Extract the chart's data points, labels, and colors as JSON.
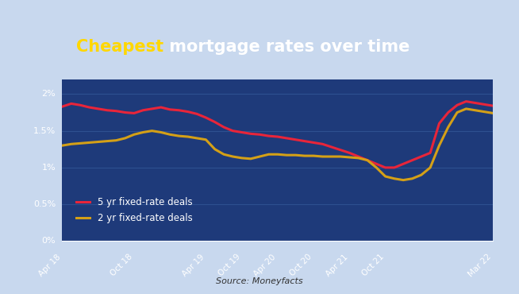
{
  "title_part1": "Cheapest",
  "title_part2": " mortgage rates over time",
  "title_color1": "#FFD700",
  "title_color2": "#FFFFFF",
  "title_bg": "#1a2a5e",
  "plot_bg": "#1e3a7a",
  "grid_color": "#2e5090",
  "source_text": "Source: Moneyfacts",
  "ylim": [
    0,
    0.022
  ],
  "yticks": [
    0,
    0.005,
    0.01,
    0.015,
    0.02
  ],
  "ytick_labels": [
    "0%",
    "0.5%",
    "1%",
    "1.5%",
    "2%"
  ],
  "x_labels": [
    "Apr 18",
    "Oct 18",
    "Apr 19",
    "Oct 19",
    "Apr 20",
    "Oct 20",
    "Apr 21",
    "Oct 21",
    "Mar 22"
  ],
  "line5yr_color": "#e8253a",
  "line2yr_color": "#d4a017",
  "line_width": 2.2,
  "legend_5yr": "5 yr fixed-rate deals",
  "legend_2yr": "2 yr fixed-rate deals",
  "x_5yr": [
    0,
    1,
    2,
    3,
    4,
    5,
    6,
    7,
    8,
    9,
    10,
    11,
    12,
    13,
    14,
    15,
    16,
    17,
    18,
    19,
    20,
    21,
    22,
    23,
    24,
    25,
    26,
    27,
    28,
    29,
    30,
    31,
    32,
    33,
    34,
    35,
    36,
    37,
    38,
    39,
    40,
    41,
    42,
    43,
    44,
    45,
    46,
    47,
    48
  ],
  "y_5yr": [
    0.0183,
    0.0187,
    0.0185,
    0.0182,
    0.018,
    0.0178,
    0.0177,
    0.0175,
    0.0174,
    0.0178,
    0.018,
    0.0182,
    0.0179,
    0.0178,
    0.0176,
    0.0173,
    0.0168,
    0.0162,
    0.0155,
    0.015,
    0.0148,
    0.0146,
    0.0145,
    0.0143,
    0.0142,
    0.014,
    0.0138,
    0.0136,
    0.0134,
    0.0132,
    0.0128,
    0.0124,
    0.012,
    0.0115,
    0.011,
    0.0105,
    0.01,
    0.01,
    0.0105,
    0.011,
    0.0115,
    0.012,
    0.016,
    0.0175,
    0.0185,
    0.019,
    0.0188,
    0.0186,
    0.0184
  ],
  "x_2yr": [
    0,
    1,
    2,
    3,
    4,
    5,
    6,
    7,
    8,
    9,
    10,
    11,
    12,
    13,
    14,
    15,
    16,
    17,
    18,
    19,
    20,
    21,
    22,
    23,
    24,
    25,
    26,
    27,
    28,
    29,
    30,
    31,
    32,
    33,
    34,
    35,
    36,
    37,
    38,
    39,
    40,
    41,
    42,
    43,
    44,
    45,
    46,
    47,
    48
  ],
  "y_2yr": [
    0.013,
    0.0132,
    0.0133,
    0.0134,
    0.0135,
    0.0136,
    0.0137,
    0.014,
    0.0145,
    0.0148,
    0.015,
    0.0148,
    0.0145,
    0.0143,
    0.0142,
    0.014,
    0.0138,
    0.0125,
    0.0118,
    0.0115,
    0.0113,
    0.0112,
    0.0115,
    0.0118,
    0.0118,
    0.0117,
    0.0117,
    0.0116,
    0.0116,
    0.0115,
    0.0115,
    0.0115,
    0.0114,
    0.0113,
    0.011,
    0.01,
    0.0088,
    0.0085,
    0.0083,
    0.0085,
    0.009,
    0.01,
    0.013,
    0.0155,
    0.0175,
    0.018,
    0.0178,
    0.0176,
    0.0174
  ],
  "x_tick_positions": [
    0,
    8,
    16,
    20,
    24,
    28,
    32,
    36,
    48
  ],
  "outer_bg": "#c8d8ee"
}
